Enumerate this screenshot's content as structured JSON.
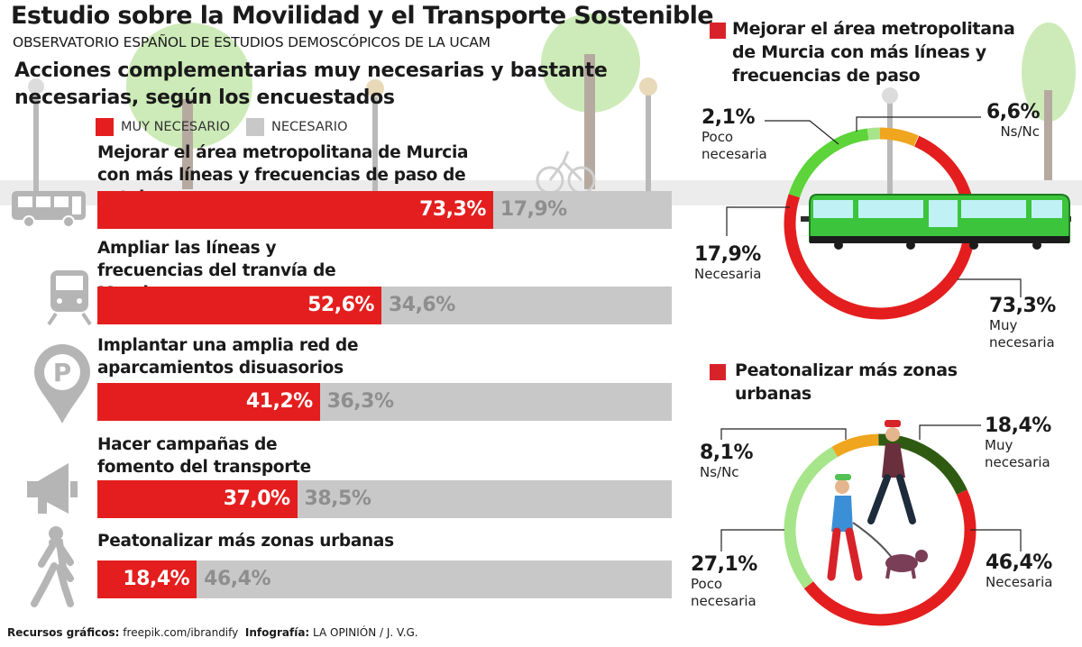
{
  "header": {
    "title": "Estudio sobre la Movilidad y el Transporte Sostenible",
    "subtitle": "OBSERVATORIO ESPAÑOL DE ESTUDIOS DEMOSCÓPICOS DE LA UCAM",
    "heading": "Acciones complementarias muy necesarias y bastante necesarias, según los encuestados"
  },
  "legend": {
    "muy": "MUY NECESARIO",
    "nec": "NECESARIO"
  },
  "colors": {
    "red": "#e41e1e",
    "gray": "#c8c8c8",
    "orange": "#f0a51e",
    "green": "#5dd43a",
    "light_green": "#a6e58a",
    "dark_green": "#2f5a12",
    "tram_green": "#3cc43c"
  },
  "icons": [
    "bus-icon",
    "tram-icon",
    "parking-location-icon",
    "megaphone-icon",
    "pedestrian-icon"
  ],
  "chart_data": [
    {
      "type": "bar",
      "stacked": true,
      "orientation": "horizontal",
      "categories": [
        "Mejorar el área metropolitana de Murcia con más líneas y frecuencias de paso de autobuses",
        "Ampliar las líneas y frecuencias del tranvía de Murcia",
        "Implantar una amplia red de aparcamientos disuasorios",
        "Hacer campañas de fomento del transporte público",
        "Peatonalizar más zonas urbanas"
      ],
      "series": [
        {
          "name": "MUY NECESARIO",
          "values": [
            73.3,
            52.6,
            41.2,
            37.0,
            18.4
          ],
          "labels": [
            "73,3%",
            "52,6%",
            "41,2%",
            "37,0%",
            "18,4%"
          ]
        },
        {
          "name": "NECESARIO",
          "values": [
            17.9,
            34.6,
            36.3,
            38.5,
            46.4
          ],
          "labels": [
            "17,9%",
            "34,6%",
            "36,3%",
            "38,5%",
            "46,4%"
          ]
        }
      ]
    },
    {
      "type": "pie",
      "donut": true,
      "title": "Mejorar el área metropolitana de Murcia con más líneas y frecuencias de paso",
      "slices": [
        {
          "label": "Muy necesaria",
          "value": 73.3,
          "text": "73,3%",
          "color": "#e41e1e"
        },
        {
          "label": "Necesaria",
          "value": 17.9,
          "text": "17,9%",
          "color": "#5dd43a"
        },
        {
          "label": "Poco necesaria",
          "value": 2.1,
          "text": "2,1%",
          "color": "#a6e58a"
        },
        {
          "label": "Ns/Nc",
          "value": 6.6,
          "text": "6,6%",
          "color": "#f0a51e"
        }
      ]
    },
    {
      "type": "pie",
      "donut": true,
      "title": "Peatonalizar más zonas urbanas",
      "slices": [
        {
          "label": "Muy necesaria",
          "value": 18.4,
          "text": "18,4%",
          "color": "#2f5a12"
        },
        {
          "label": "Necesaria",
          "value": 46.4,
          "text": "46,4%",
          "color": "#e41e1e"
        },
        {
          "label": "Poco necesaria",
          "value": 27.1,
          "text": "27,1%",
          "color": "#a6e58a"
        },
        {
          "label": "Ns/Nc",
          "value": 8.1,
          "text": "8,1%",
          "color": "#f0a51e"
        }
      ]
    }
  ],
  "footer": {
    "resources_label": "Recursos gráficos:",
    "resources_value": "freepik.com/ibrandify",
    "infographic_label": "Infografía:",
    "infographic_value": "LA OPINIÓN / J. V.G."
  }
}
